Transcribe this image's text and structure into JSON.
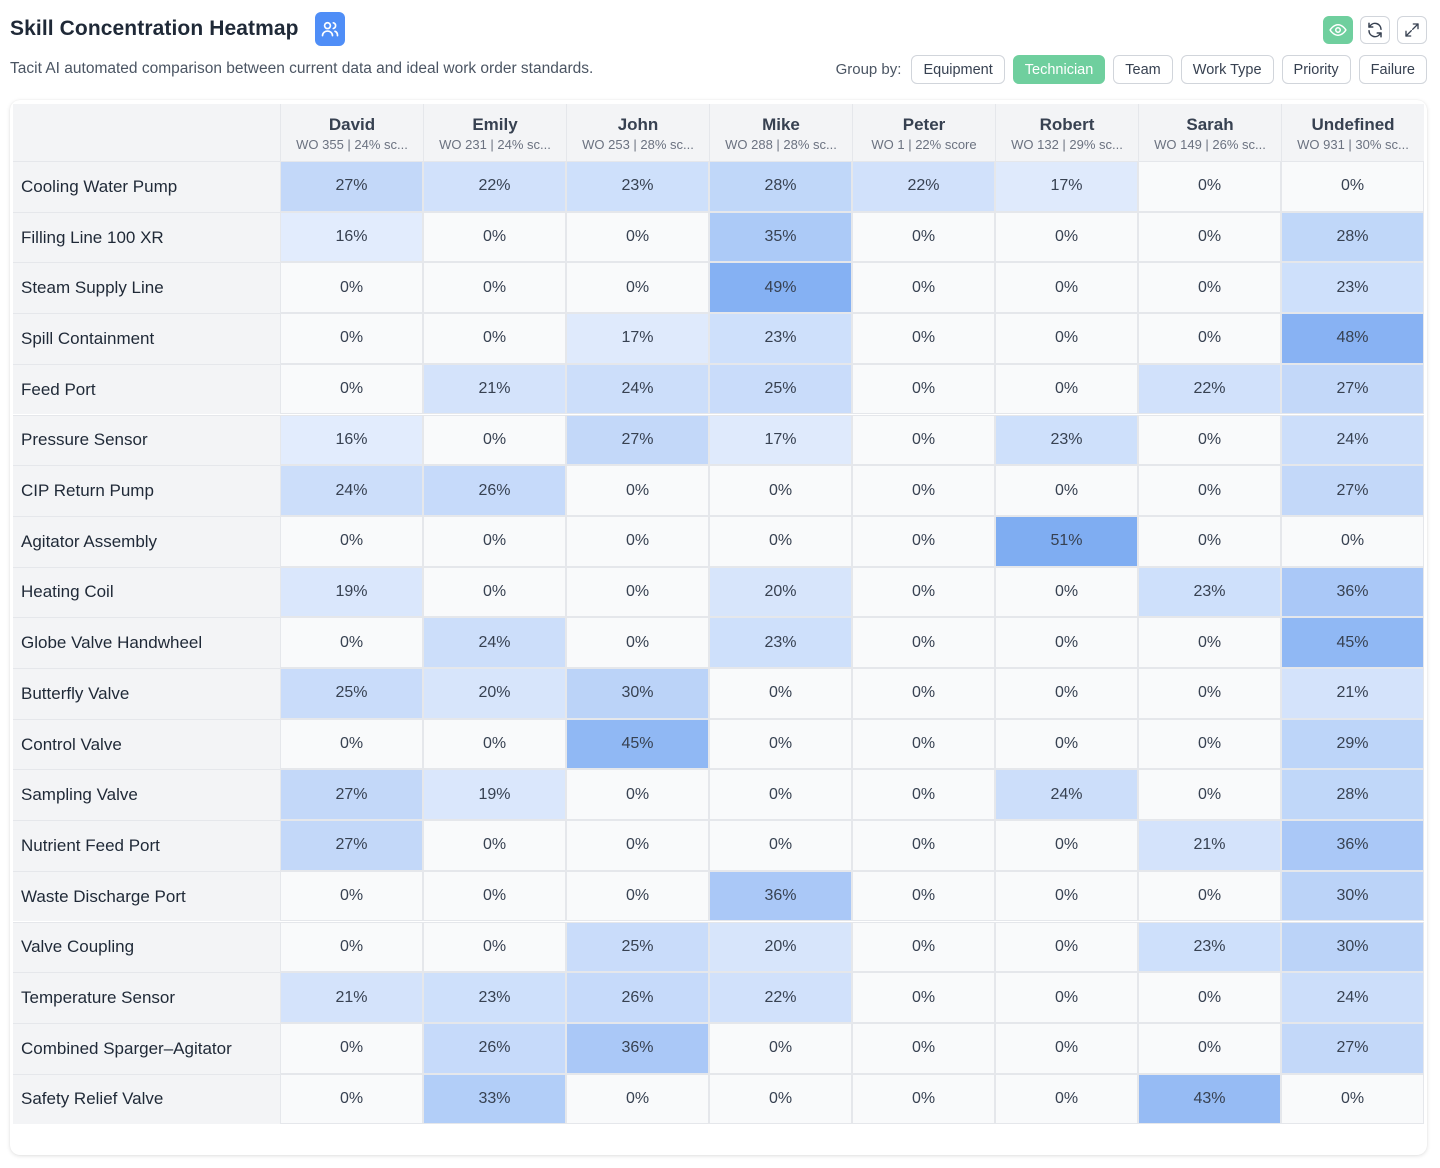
{
  "header": {
    "title": "Skill Concentration Heatmap",
    "team_icon": "users-icon"
  },
  "subtitle": "Tacit AI automated comparison between current data and ideal work order standards.",
  "actions": [
    {
      "name": "eye-icon",
      "active": true
    },
    {
      "name": "refresh-icon",
      "active": false
    },
    {
      "name": "expand-icon",
      "active": false
    }
  ],
  "group_by": {
    "label": "Group by:",
    "options": [
      "Equipment",
      "Technician",
      "Team",
      "Work Type",
      "Priority",
      "Failure"
    ],
    "selected": "Technician"
  },
  "colors": {
    "accent": "#6fcf9e",
    "primary": "#4f8ef7",
    "zero_cell": "#f9fafb"
  },
  "heatmap": {
    "columns": [
      {
        "name": "David",
        "sub": "WO 355 | 24% sc..."
      },
      {
        "name": "Emily",
        "sub": "WO 231 | 24% sc..."
      },
      {
        "name": "John",
        "sub": "WO 253 | 28% sc..."
      },
      {
        "name": "Mike",
        "sub": "WO 288 | 28% sc..."
      },
      {
        "name": "Peter",
        "sub": "WO 1 | 22% score"
      },
      {
        "name": "Robert",
        "sub": "WO 132 | 29% sc..."
      },
      {
        "name": "Sarah",
        "sub": "WO 149 | 26% sc..."
      },
      {
        "name": "Undefined",
        "sub": "WO 931 | 30% sc..."
      }
    ],
    "rows": [
      {
        "label": "Cooling Water Pump",
        "values": [
          27,
          22,
          23,
          28,
          22,
          17,
          0,
          0
        ]
      },
      {
        "label": "Filling Line 100 XR",
        "values": [
          16,
          0,
          0,
          35,
          0,
          0,
          0,
          28
        ]
      },
      {
        "label": "Steam Supply Line",
        "values": [
          0,
          0,
          0,
          49,
          0,
          0,
          0,
          23
        ]
      },
      {
        "label": "Spill Containment",
        "values": [
          0,
          0,
          17,
          23,
          0,
          0,
          0,
          48
        ]
      },
      {
        "label": "Feed Port",
        "values": [
          0,
          21,
          24,
          25,
          0,
          0,
          22,
          27
        ]
      },
      {
        "label": "Pressure Sensor",
        "values": [
          16,
          0,
          27,
          17,
          0,
          23,
          0,
          24
        ]
      },
      {
        "label": "CIP Return Pump",
        "values": [
          24,
          26,
          0,
          0,
          0,
          0,
          0,
          27
        ]
      },
      {
        "label": "Agitator Assembly",
        "values": [
          0,
          0,
          0,
          0,
          0,
          51,
          0,
          0
        ]
      },
      {
        "label": "Heating Coil",
        "values": [
          19,
          0,
          0,
          20,
          0,
          0,
          23,
          36
        ]
      },
      {
        "label": "Globe Valve Handwheel",
        "values": [
          0,
          24,
          0,
          23,
          0,
          0,
          0,
          45
        ]
      },
      {
        "label": "Butterfly Valve",
        "values": [
          25,
          20,
          30,
          0,
          0,
          0,
          0,
          21
        ]
      },
      {
        "label": "Control Valve",
        "values": [
          0,
          0,
          45,
          0,
          0,
          0,
          0,
          29
        ]
      },
      {
        "label": "Sampling Valve",
        "values": [
          27,
          19,
          0,
          0,
          0,
          24,
          0,
          28
        ]
      },
      {
        "label": "Nutrient Feed Port",
        "values": [
          27,
          0,
          0,
          0,
          0,
          0,
          21,
          36
        ]
      },
      {
        "label": "Waste Discharge Port",
        "values": [
          0,
          0,
          0,
          36,
          0,
          0,
          0,
          30
        ]
      },
      {
        "label": "Valve Coupling",
        "values": [
          0,
          0,
          25,
          20,
          0,
          0,
          23,
          30
        ]
      },
      {
        "label": "Temperature Sensor",
        "values": [
          21,
          23,
          26,
          22,
          0,
          0,
          0,
          24
        ]
      },
      {
        "label": "Combined Sparger–Agitator",
        "values": [
          0,
          26,
          36,
          0,
          0,
          0,
          0,
          27
        ]
      },
      {
        "label": "Safety Relief Valve",
        "values": [
          0,
          33,
          0,
          0,
          0,
          0,
          43,
          0
        ]
      }
    ]
  }
}
